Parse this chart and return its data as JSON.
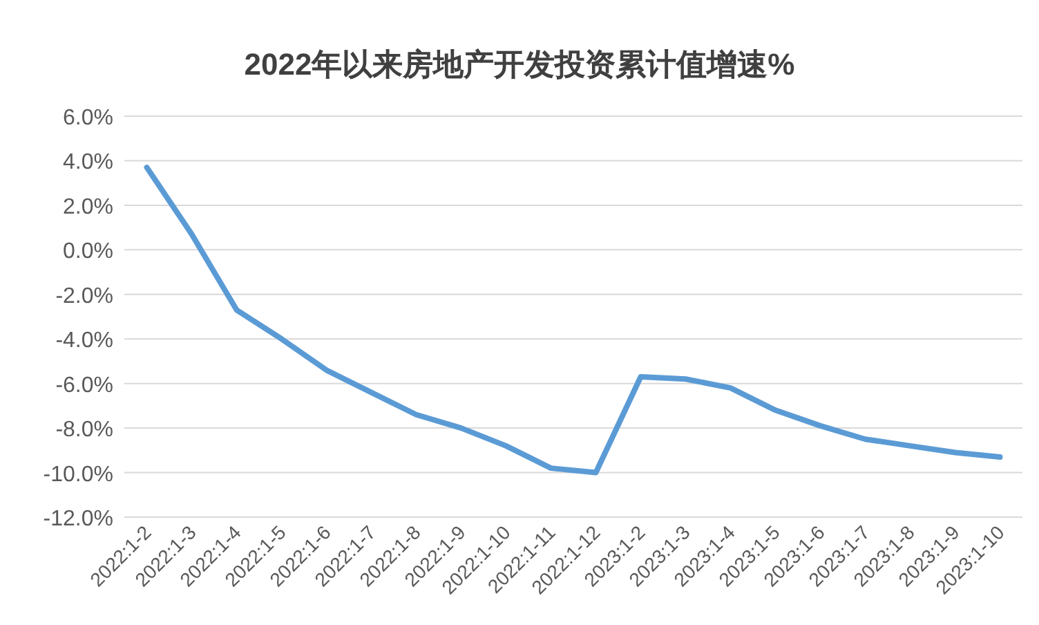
{
  "chart_data": {
    "type": "line",
    "title": "2022年以来房地产开发投资累计值增速%",
    "categories": [
      "2022:1-2",
      "2022:1-3",
      "2022:1-4",
      "2022:1-5",
      "2022:1-6",
      "2022:1-7",
      "2022:1-8",
      "2022:1-9",
      "2022:1-10",
      "2022:1-11",
      "2022:1-12",
      "2023:1-2",
      "2023:1-3",
      "2023:1-4",
      "2023:1-5",
      "2023:1-6",
      "2023:1-7",
      "2023:1-8",
      "2023:1-9",
      "2023:1-10"
    ],
    "series": [
      {
        "color": "#5b9bd5",
        "values": [
          3.7,
          0.7,
          -2.7,
          -4.0,
          -5.4,
          -6.4,
          -7.4,
          -8.0,
          -8.8,
          -9.8,
          -10.0,
          -5.7,
          -5.8,
          -6.2,
          -7.2,
          -7.9,
          -8.5,
          -8.8,
          -9.1,
          -9.3
        ]
      }
    ],
    "ylim": [
      -12,
      6
    ],
    "yticks": [
      {
        "value": 6,
        "label": "6.0%"
      },
      {
        "value": 4,
        "label": "4.0%"
      },
      {
        "value": 2,
        "label": "2.0%"
      },
      {
        "value": 0,
        "label": "0.0%"
      },
      {
        "value": -2,
        "label": "-2.0%"
      },
      {
        "value": -4,
        "label": "-4.0%"
      },
      {
        "value": -6,
        "label": "-6.0%"
      },
      {
        "value": -8,
        "label": "-8.0%"
      },
      {
        "value": -10,
        "label": "-10.0%"
      },
      {
        "value": -12,
        "label": "-12.0%"
      }
    ],
    "grid": "y",
    "marker": "none",
    "line_style": "solid"
  }
}
